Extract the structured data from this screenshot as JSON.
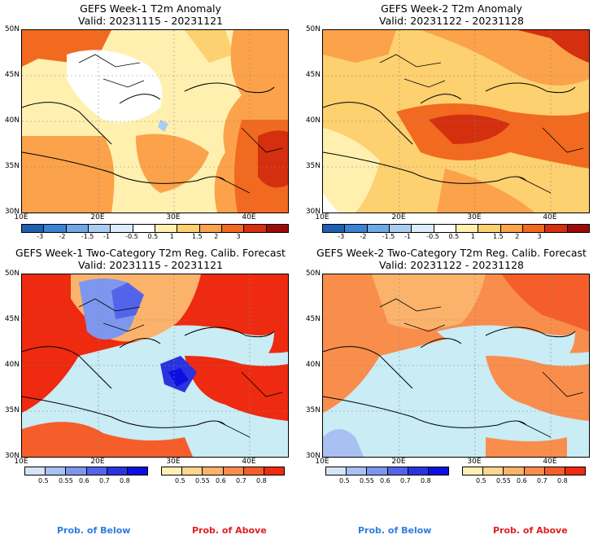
{
  "panels": [
    {
      "title": "GEFS Week-1 T2m Anomaly",
      "valid": "Valid: 20231115 - 20231121"
    },
    {
      "title": "GEFS Week-2 T2m Anomaly",
      "valid": "Valid: 20231122 - 20231128"
    },
    {
      "title": "GEFS Week-1 Two-Category T2m Reg. Calib. Forecast",
      "valid": "Valid: 20231115 - 20231121"
    },
    {
      "title": "GEFS Week-2 Two-Category T2m Reg. Calib. Forecast",
      "valid": "Valid: 20231122 - 20231128"
    }
  ],
  "lat_labels": [
    "50N",
    "45N",
    "40N",
    "35N",
    "30N"
  ],
  "lon_labels": [
    "10E",
    "20E",
    "30E",
    "40E"
  ],
  "anomaly_colorbar": {
    "labels": [
      "-3",
      "-2",
      "-1.5",
      "-1",
      "-0.5",
      "0.5",
      "1",
      "1.5",
      "2",
      "3"
    ],
    "colors": [
      "#1f5fb4",
      "#3a82d6",
      "#6fa8e6",
      "#a9cdf0",
      "#dcecfa",
      "#ffffff",
      "#fff0b0",
      "#fdd070",
      "#fba24a",
      "#f16a1f",
      "#d42f0f",
      "#9c0a0a"
    ]
  },
  "prob_below": {
    "labels": [
      "0.5",
      "0.55",
      "0.6",
      "0.7",
      "0.8"
    ],
    "colors": [
      "#d7e4f8",
      "#a8c1f2",
      "#7d97ee",
      "#5265ea",
      "#2a33e0",
      "#0d0fe0"
    ]
  },
  "prob_above": {
    "labels": [
      "0.5",
      "0.55",
      "0.6",
      "0.7",
      "0.8"
    ],
    "colors": [
      "#fff0b8",
      "#fdd690",
      "#fbb36c",
      "#f98d4c",
      "#f55e2a",
      "#ee2a10"
    ]
  },
  "legend_words": {
    "below": "Prob. of Below",
    "above": "Prob. of Above"
  },
  "colors": {
    "sea": "#c9ecf5",
    "below_text": "#2f7de1",
    "above_text": "#e02020"
  }
}
